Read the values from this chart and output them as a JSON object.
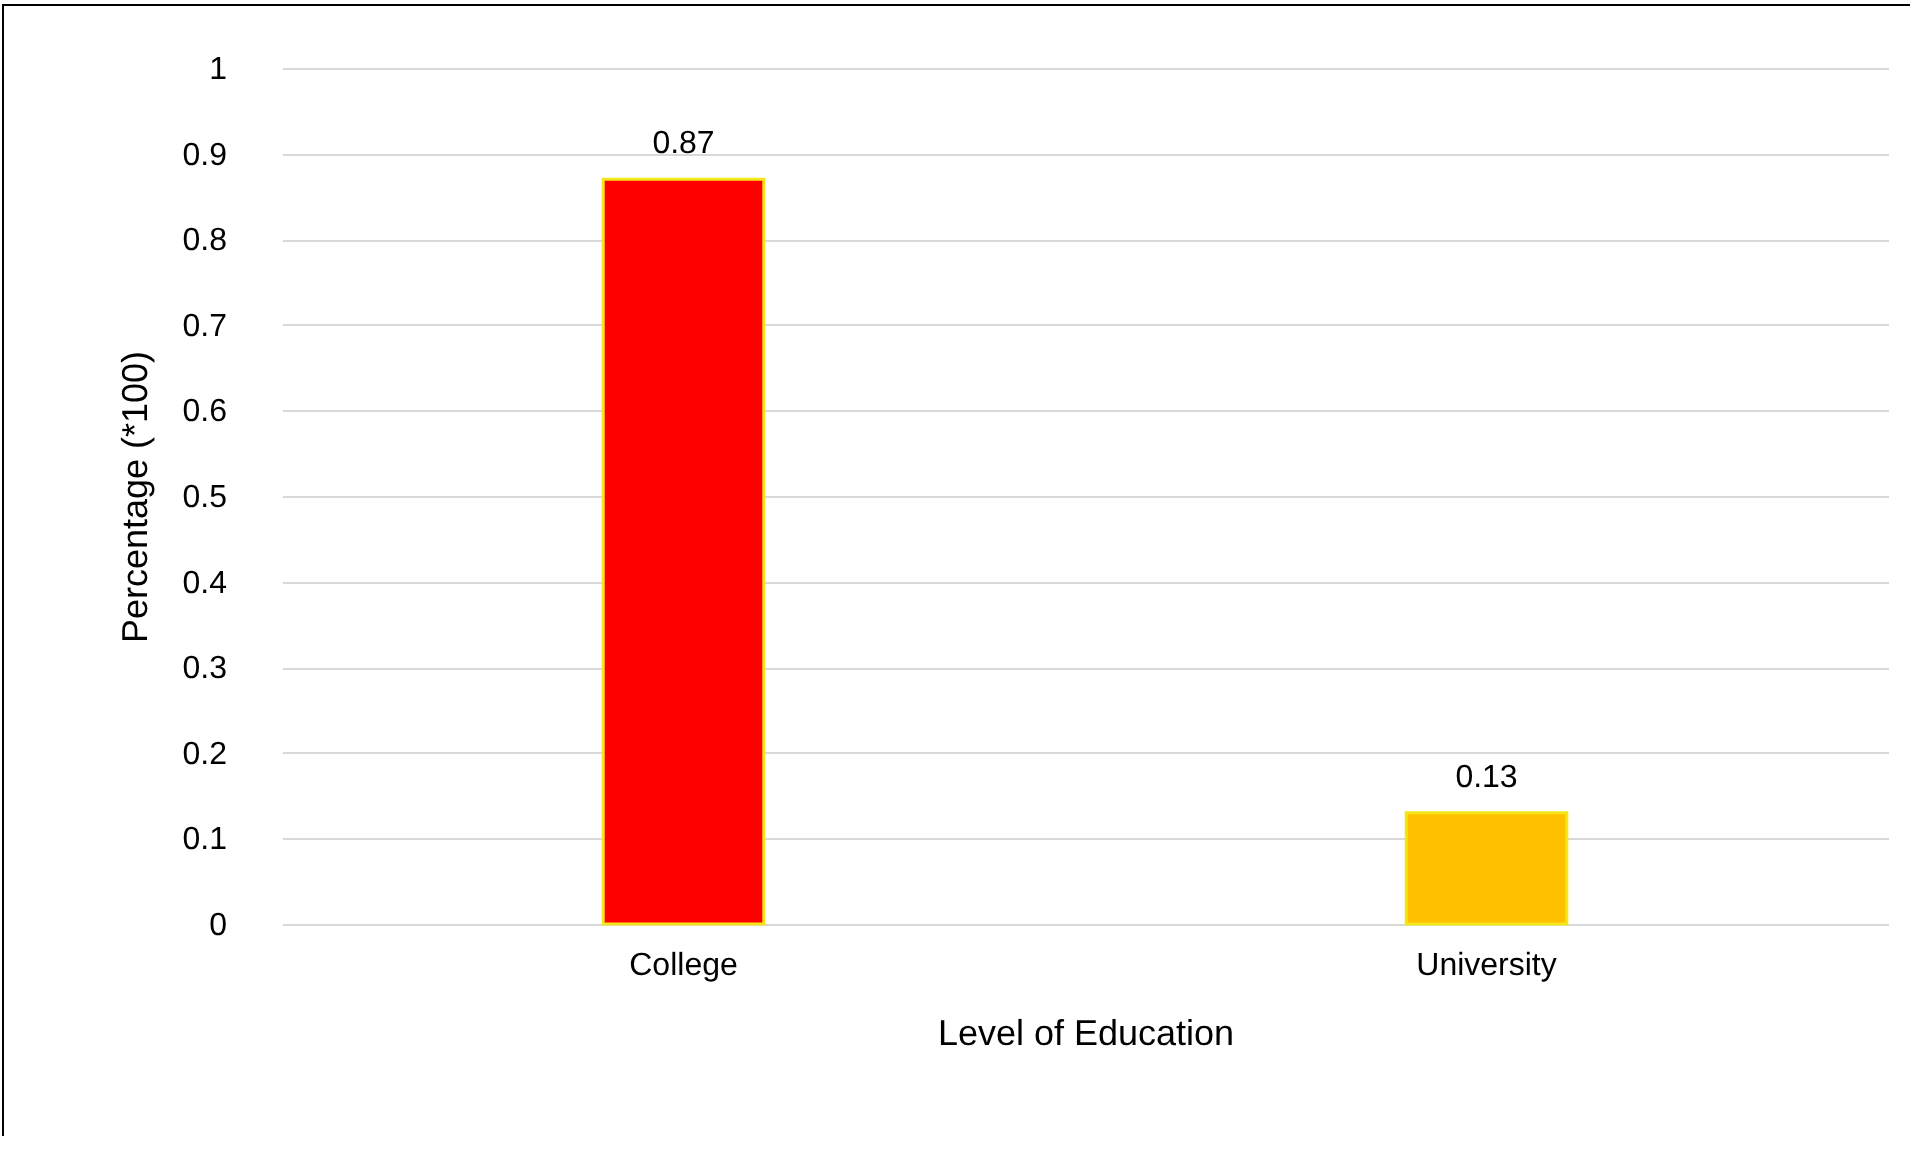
{
  "chart_data": {
    "type": "bar",
    "xlabel": "Level of Education",
    "ylabel": "Percentage (*100)",
    "categories": [
      "College",
      "University"
    ],
    "values": [
      0.87,
      0.13
    ],
    "colors": [
      "#ff0000",
      "#ffc000"
    ],
    "ylim": [
      0,
      1
    ],
    "yticks": [
      0,
      0.1,
      0.2,
      0.3,
      0.4,
      0.5,
      0.6,
      0.7,
      0.8,
      0.9,
      1
    ],
    "grid": "y",
    "data_labels": true
  }
}
